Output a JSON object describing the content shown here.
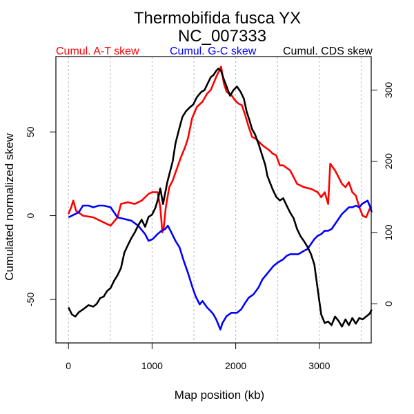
{
  "chart_data": {
    "type": "line",
    "title": "Thermobifida fusca YX",
    "subtitle": "NC_007333",
    "xlabel": "Map position (kb)",
    "ylabel": "Cumulated normalized skew",
    "xlim": [
      -150,
      3620
    ],
    "ylim_left": [
      -76,
      95
    ],
    "ylim_right": [
      -55,
      347
    ],
    "x_ticks": [
      0,
      1000,
      2000,
      3000
    ],
    "x_tick_labels": [
      "0",
      "1000",
      "2000",
      "3000"
    ],
    "x_grid": [
      0,
      500,
      1000,
      1500,
      2000,
      2500,
      3000,
      3500
    ],
    "y_left_ticks": [
      -50,
      0,
      50
    ],
    "y_left_tick_labels": [
      "-50",
      "0",
      "50"
    ],
    "y_right_ticks": [
      0,
      100,
      200,
      300
    ],
    "y_right_tick_labels": [
      "0",
      "100",
      "200",
      "300"
    ],
    "grid": "vertical dotted",
    "legend_position": "top",
    "series": [
      {
        "name": "Cumul. A-T skew",
        "color": "#ff0000",
        "axis": "left",
        "x": [
          0,
          33,
          58,
          91,
          173,
          297,
          421,
          504,
          587,
          628,
          710,
          793,
          875,
          958,
          999,
          1065,
          1098,
          1123,
          1139,
          1164,
          1205,
          1247,
          1296,
          1346,
          1395,
          1428,
          1478,
          1536,
          1602,
          1660,
          1701,
          1743,
          1776,
          1809,
          1825,
          1858,
          1891,
          1949,
          1990,
          2031,
          2073,
          2114,
          2155,
          2196,
          2238,
          2320,
          2403,
          2444,
          2485,
          2527,
          2568,
          2651,
          2692,
          2733,
          2816,
          2899,
          2981,
          3022,
          3064,
          3105,
          3130,
          3188,
          3229,
          3270,
          3312,
          3353,
          3394,
          3436,
          3477,
          3518,
          3559,
          3601,
          3626
        ],
        "values": [
          1,
          5,
          9,
          3,
          0,
          -1,
          -4,
          -6,
          -1,
          7,
          8,
          7,
          9,
          13,
          14,
          14,
          5,
          -10,
          -7,
          5,
          17,
          21,
          28,
          35,
          41,
          46,
          58,
          65,
          68,
          73,
          75,
          80,
          84,
          87,
          89,
          79,
          74,
          72,
          69,
          67,
          66,
          60,
          53,
          47,
          46,
          42,
          39,
          37,
          36,
          30,
          30,
          27,
          23,
          19,
          17,
          16,
          14,
          11,
          14,
          7,
          31,
          27,
          23,
          19,
          17,
          20,
          14,
          12,
          5,
          0,
          -1,
          4,
          5
        ]
      },
      {
        "name": "Cumul. G-C skew",
        "color": "#0000ff",
        "axis": "left",
        "x": [
          0,
          41,
          83,
          124,
          173,
          239,
          297,
          363,
          421,
          504,
          587,
          669,
          752,
          834,
          917,
          958,
          1007,
          1065,
          1114,
          1156,
          1189,
          1230,
          1280,
          1329,
          1379,
          1428,
          1478,
          1519,
          1569,
          1602,
          1660,
          1701,
          1734,
          1767,
          1792,
          1817,
          1842,
          1891,
          1949,
          2015,
          2064,
          2114,
          2155,
          2213,
          2271,
          2320,
          2370,
          2403,
          2452,
          2502,
          2568,
          2609,
          2651,
          2692,
          2750,
          2816,
          2857,
          2899,
          2940,
          2981,
          3022,
          3064,
          3105,
          3146,
          3188,
          3229,
          3270,
          3312,
          3353,
          3394,
          3436,
          3477,
          3510,
          3543,
          3576,
          3609,
          3626
        ],
        "values": [
          -1,
          0,
          1,
          2,
          6,
          6,
          5,
          6,
          6,
          5,
          -1,
          -2,
          -3,
          -6,
          -11,
          -15,
          -14,
          -11,
          -9,
          -8,
          -6,
          -10,
          -15,
          -19,
          -27,
          -34,
          -42,
          -48,
          -53,
          -51,
          -55,
          -57,
          -59,
          -62,
          -65,
          -68,
          -64,
          -60,
          -58,
          -58,
          -56,
          -52,
          -49,
          -47,
          -43,
          -38,
          -35,
          -33,
          -30,
          -28,
          -26,
          -24,
          -23,
          -23,
          -23,
          -21,
          -20,
          -17,
          -14,
          -12,
          -11,
          -9,
          -9,
          -8,
          -5,
          -2,
          1,
          3,
          5,
          5,
          6,
          5,
          7,
          8,
          9,
          5,
          2
        ]
      },
      {
        "name": "Cumul. CDS skew",
        "color": "#000000",
        "axis": "right",
        "x": [
          0,
          41,
          83,
          124,
          173,
          239,
          297,
          339,
          380,
          421,
          463,
          504,
          545,
          587,
          628,
          669,
          710,
          752,
          793,
          834,
          875,
          917,
          958,
          999,
          1040,
          1073,
          1098,
          1131,
          1156,
          1181,
          1214,
          1247,
          1280,
          1321,
          1362,
          1403,
          1445,
          1494,
          1536,
          1585,
          1627,
          1668,
          1701,
          1734,
          1767,
          1792,
          1825,
          1858,
          1891,
          1932,
          1973,
          2015,
          2056,
          2097,
          2130,
          2163,
          2196,
          2230,
          2271,
          2312,
          2353,
          2378,
          2403,
          2444,
          2485,
          2527,
          2568,
          2609,
          2651,
          2692,
          2733,
          2774,
          2816,
          2857,
          2899,
          2940,
          2981,
          3022,
          3064,
          3105,
          3146,
          3188,
          3229,
          3270,
          3312,
          3353,
          3394,
          3436,
          3477,
          3518,
          3559,
          3601,
          3626
        ],
        "values": [
          -5,
          -15,
          -18,
          -12,
          -8,
          -2,
          -4,
          0,
          8,
          10,
          18,
          22,
          32,
          40,
          50,
          72,
          82,
          92,
          100,
          110,
          118,
          108,
          122,
          125,
          135,
          148,
          162,
          140,
          155,
          170,
          185,
          200,
          225,
          244,
          262,
          270,
          275,
          280,
          290,
          297,
          300,
          310,
          318,
          321,
          327,
          330,
          327,
          315,
          305,
          292,
          300,
          305,
          298,
          288,
          270,
          258,
          245,
          238,
          225,
          210,
          195,
          180,
          172,
          160,
          150,
          145,
          148,
          138,
          128,
          120,
          105,
          95,
          88,
          80,
          70,
          55,
          20,
          -15,
          -27,
          -25,
          -30,
          -18,
          -24,
          -32,
          -22,
          -30,
          -20,
          -28,
          -20,
          -22,
          -18,
          -14,
          -8
        ]
      }
    ]
  }
}
